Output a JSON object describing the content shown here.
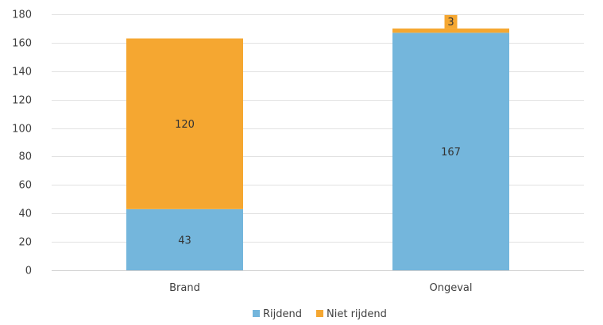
{
  "chart_data": {
    "type": "bar",
    "stacked": true,
    "categories": [
      "Brand",
      "Ongeval"
    ],
    "series": [
      {
        "name": "Rijdend",
        "values": [
          43,
          167
        ],
        "color": "#74b6dc"
      },
      {
        "name": "Niet rijdend",
        "values": [
          120,
          3
        ],
        "color": "#f5a731"
      }
    ],
    "ylim": [
      0,
      180
    ],
    "yticks": [
      0,
      20,
      40,
      60,
      80,
      100,
      120,
      140,
      160,
      180
    ],
    "grid": true,
    "legend": "bottom",
    "title": "",
    "xlabel": "",
    "ylabel": ""
  }
}
